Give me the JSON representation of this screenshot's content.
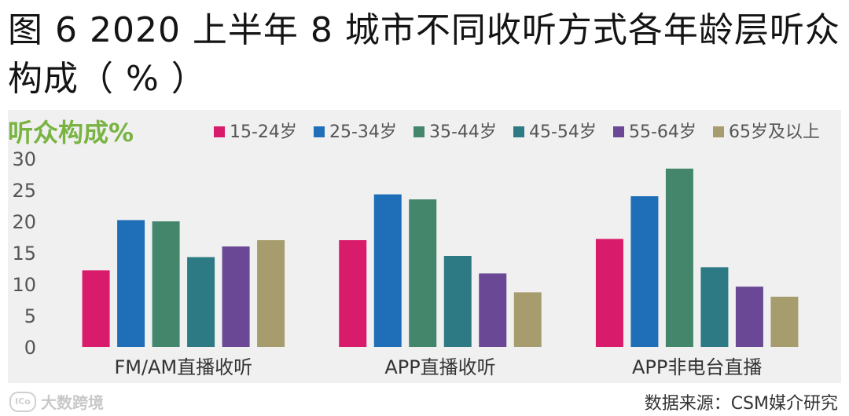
{
  "title_line1": "图 6   2020 上半年 8 城市不同收听方式各年龄层听众",
  "title_line2": "构成（ % ）",
  "source": "数据来源：CSM媒介研究",
  "watermark": {
    "text": "大数跨境",
    "logo_glyph": "ICo"
  },
  "colors": [
    "#d81b6a",
    "#1f6fb8",
    "#44866c",
    "#2e7a84",
    "#6a4895",
    "#a79c6e"
  ],
  "chart_data": {
    "type": "bar",
    "ylabel": "听众构成%",
    "categories": [
      "FM/AM直播收听",
      "APP直播收听",
      "APP非电台直播"
    ],
    "series": [
      {
        "name": "15-24岁",
        "values": [
          12.2,
          17.0,
          17.2
        ]
      },
      {
        "name": "25-34岁",
        "values": [
          20.2,
          24.3,
          24.0
        ]
      },
      {
        "name": "35-44岁",
        "values": [
          20.0,
          23.5,
          28.4
        ]
      },
      {
        "name": "45-54岁",
        "values": [
          14.3,
          14.5,
          12.7
        ]
      },
      {
        "name": "55-64岁",
        "values": [
          16.0,
          11.7,
          9.6
        ]
      },
      {
        "name": "65岁及以上",
        "values": [
          17.0,
          8.7,
          8.0
        ]
      }
    ],
    "ylim": [
      0,
      30
    ],
    "yticks": [
      0,
      5,
      10,
      15,
      20,
      25,
      30
    ],
    "grid": false,
    "legend": "top"
  }
}
